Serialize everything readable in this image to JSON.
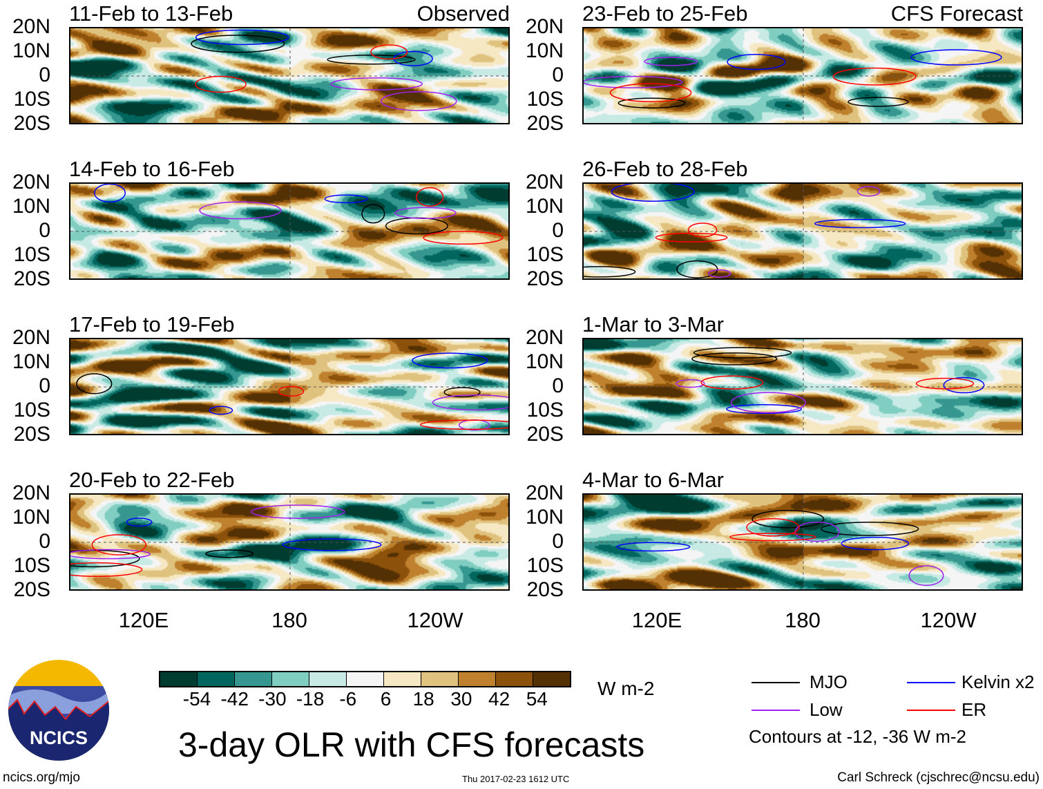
{
  "left_header": "Observed",
  "right_header": "CFS Forecast",
  "chart_data": {
    "type": "heatmap",
    "title": "3-day OLR with CFS forecasts",
    "units": "W m-2",
    "lat_ticks": [
      "20N",
      "10N",
      "0",
      "10S",
      "20S"
    ],
    "lon_ticks": [
      "120E",
      "180",
      "120W"
    ],
    "panels": [
      {
        "title": "11-Feb to 13-Feb",
        "kind": "Observed",
        "seed": 1
      },
      {
        "title": "14-Feb to 16-Feb",
        "kind": "Observed",
        "seed": 2
      },
      {
        "title": "17-Feb to 19-Feb",
        "kind": "Observed",
        "seed": 3
      },
      {
        "title": "20-Feb to 22-Feb",
        "kind": "Observed",
        "seed": 4
      },
      {
        "title": "23-Feb to 25-Feb",
        "kind": "CFS Forecast",
        "seed": 5
      },
      {
        "title": "26-Feb to 28-Feb",
        "kind": "CFS Forecast",
        "seed": 6
      },
      {
        "title": "1-Mar to 3-Mar",
        "kind": "CFS Forecast",
        "seed": 7
      },
      {
        "title": "4-Mar to 6-Mar",
        "kind": "CFS Forecast",
        "seed": 8
      }
    ],
    "colorbar": {
      "levels": [
        "-54",
        "-42",
        "-30",
        "-18",
        "-6",
        "6",
        "18",
        "30",
        "42",
        "54"
      ],
      "colors": [
        "#003c30",
        "#01665e",
        "#35978f",
        "#80cdc1",
        "#c7eae5",
        "#f5f5f5",
        "#f6e8c3",
        "#dfc27d",
        "#bf812d",
        "#8c510a",
        "#543005"
      ]
    },
    "legend": [
      {
        "label": "MJO",
        "color": "#000000"
      },
      {
        "label": "Kelvin x2",
        "color": "#0000ff"
      },
      {
        "label": "Low",
        "color": "#a020f0"
      },
      {
        "label": "ER",
        "color": "#ff0000"
      }
    ],
    "contour_note": "Contours at -12, -36 W m-2"
  },
  "logo_text": "NCICS",
  "footer": {
    "left": "ncics.org/mjo",
    "center": "Thu 2017-02-23 1612 UTC",
    "right": "Carl Schreck (cjschrec@ncsu.edu)"
  }
}
